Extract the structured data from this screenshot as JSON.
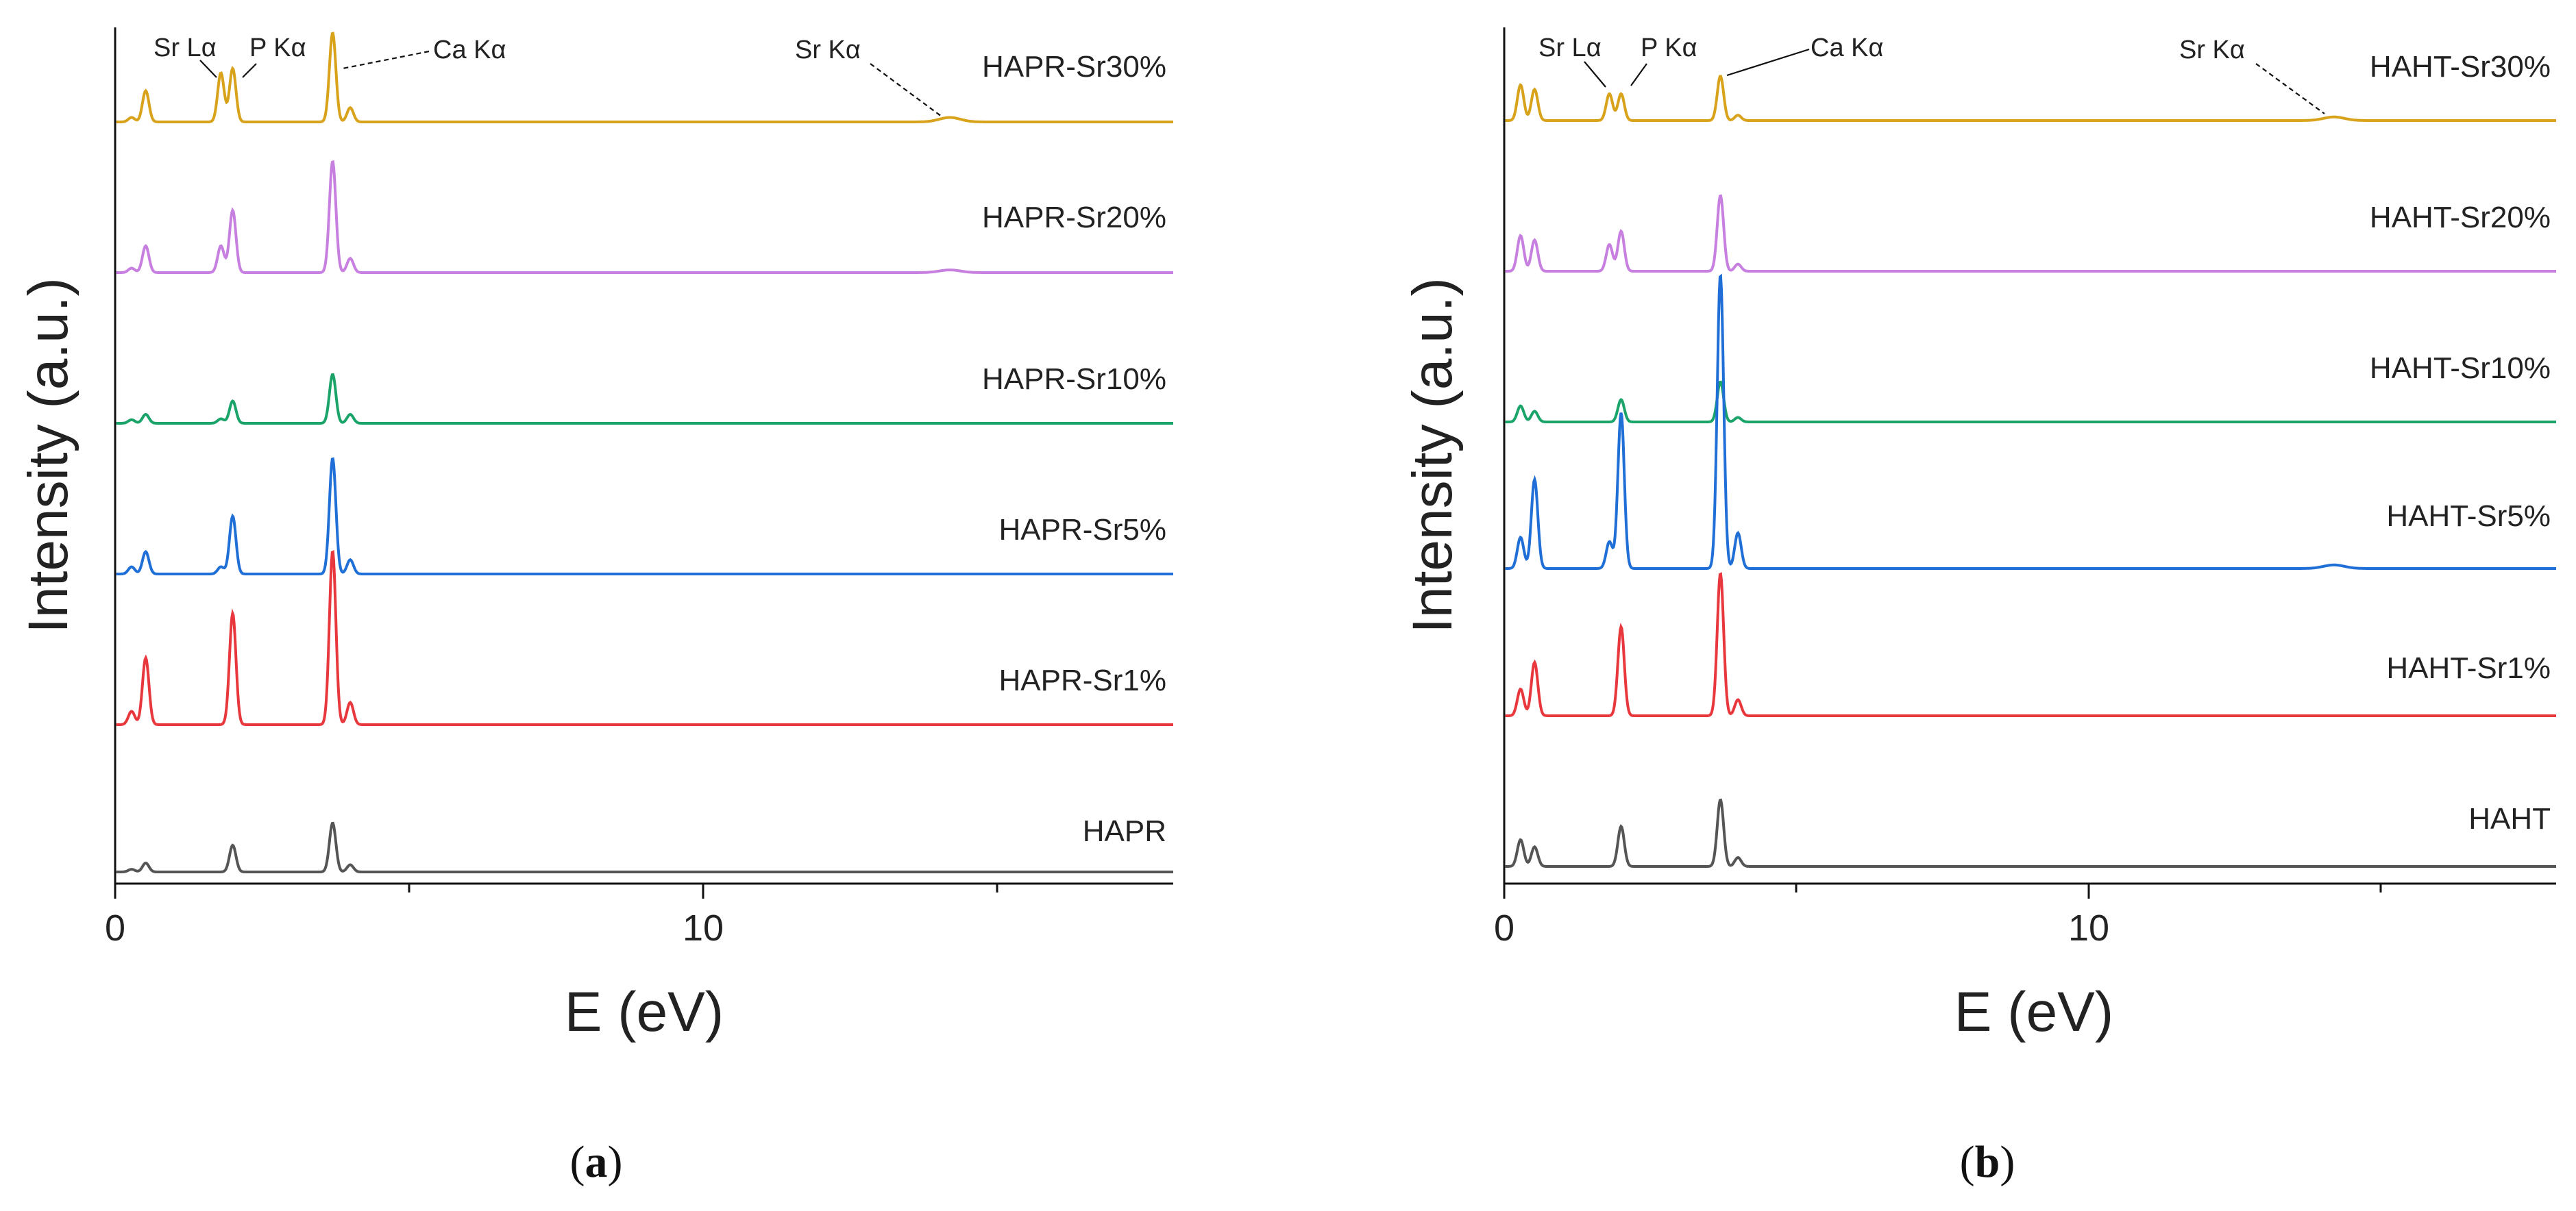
{
  "chart_data": [
    {
      "panel": "a",
      "panel_label": "(a)",
      "type": "line",
      "xlabel": "E (eV)",
      "ylabel": "Intensity (a.u.)",
      "xlim": [
        0,
        18
      ],
      "xticks": [
        0,
        10
      ],
      "peak_annotations": [
        {
          "label": "Sr Lα",
          "energy": 1.8
        },
        {
          "label": "P Kα",
          "energy": 2.0
        },
        {
          "label": "Ca Kα",
          "energy": 3.7
        },
        {
          "label": "Sr Kα",
          "energy": 14.2
        }
      ],
      "series": [
        {
          "name": "HAPR-Sr30%",
          "color": "#d9a21b",
          "peaks": [
            [
              0.28,
              0.05
            ],
            [
              0.52,
              0.35
            ],
            [
              1.8,
              0.55
            ],
            [
              2.0,
              0.6
            ],
            [
              3.7,
              1.0
            ],
            [
              4.0,
              0.16
            ],
            [
              14.2,
              0.05
            ]
          ]
        },
        {
          "name": "HAPR-Sr20%",
          "color": "#c77fe0",
          "peaks": [
            [
              0.28,
              0.05
            ],
            [
              0.52,
              0.3
            ],
            [
              1.8,
              0.3
            ],
            [
              2.0,
              0.7
            ],
            [
              3.7,
              1.25
            ],
            [
              4.0,
              0.16
            ],
            [
              14.2,
              0.03
            ]
          ]
        },
        {
          "name": "HAPR-Sr10%",
          "color": "#1aa46a",
          "peaks": [
            [
              0.28,
              0.04
            ],
            [
              0.52,
              0.1
            ],
            [
              1.8,
              0.05
            ],
            [
              2.0,
              0.25
            ],
            [
              3.7,
              0.55
            ],
            [
              4.0,
              0.1
            ]
          ]
        },
        {
          "name": "HAPR-Sr5%",
          "color": "#1f6fd6",
          "peaks": [
            [
              0.28,
              0.08
            ],
            [
              0.52,
              0.25
            ],
            [
              1.8,
              0.08
            ],
            [
              2.0,
              0.65
            ],
            [
              3.7,
              1.3
            ],
            [
              4.0,
              0.16
            ]
          ]
        },
        {
          "name": "HAPR-Sr1%",
          "color": "#e8383d",
          "peaks": [
            [
              0.28,
              0.15
            ],
            [
              0.52,
              0.75
            ],
            [
              2.0,
              1.25
            ],
            [
              3.7,
              1.95
            ],
            [
              4.0,
              0.25
            ]
          ]
        },
        {
          "name": "HAPR",
          "color": "#555555",
          "peaks": [
            [
              0.28,
              0.03
            ],
            [
              0.52,
              0.1
            ],
            [
              2.0,
              0.3
            ],
            [
              3.7,
              0.55
            ],
            [
              4.0,
              0.08
            ]
          ]
        }
      ]
    },
    {
      "panel": "b",
      "panel_label": "(b)",
      "type": "line",
      "xlabel": "E (eV)",
      "ylabel": "Intensity (a.u.)",
      "xlim": [
        0,
        18
      ],
      "xticks": [
        0,
        10
      ],
      "peak_annotations": [
        {
          "label": "Sr Lα",
          "energy": 1.8
        },
        {
          "label": "P Kα",
          "energy": 2.0
        },
        {
          "label": "Ca Kα",
          "energy": 3.7
        },
        {
          "label": "Sr Kα",
          "energy": 14.2
        }
      ],
      "series": [
        {
          "name": "HAHT-Sr30%",
          "color": "#d9a21b",
          "peaks": [
            [
              0.28,
              0.4
            ],
            [
              0.52,
              0.35
            ],
            [
              1.8,
              0.3
            ],
            [
              2.0,
              0.3
            ],
            [
              3.7,
              0.5
            ],
            [
              4.0,
              0.06
            ],
            [
              14.2,
              0.04
            ]
          ]
        },
        {
          "name": "HAHT-Sr20%",
          "color": "#c77fe0",
          "peaks": [
            [
              0.28,
              0.4
            ],
            [
              0.52,
              0.35
            ],
            [
              1.8,
              0.3
            ],
            [
              2.0,
              0.45
            ],
            [
              3.7,
              0.85
            ],
            [
              4.0,
              0.08
            ]
          ]
        },
        {
          "name": "HAHT-Sr10%",
          "color": "#1aa46a",
          "peaks": [
            [
              0.28,
              0.18
            ],
            [
              0.52,
              0.12
            ],
            [
              2.0,
              0.25
            ],
            [
              3.7,
              0.45
            ],
            [
              4.0,
              0.05
            ]
          ]
        },
        {
          "name": "HAHT-Sr5%",
          "color": "#1f6fd6",
          "peaks": [
            [
              0.28,
              0.35
            ],
            [
              0.52,
              1.0
            ],
            [
              1.8,
              0.3
            ],
            [
              2.0,
              1.75
            ],
            [
              3.7,
              3.3
            ],
            [
              4.0,
              0.4
            ],
            [
              14.2,
              0.04
            ]
          ]
        },
        {
          "name": "HAHT-Sr1%",
          "color": "#e8383d",
          "peaks": [
            [
              0.28,
              0.3
            ],
            [
              0.52,
              0.6
            ],
            [
              2.0,
              1.0
            ],
            [
              3.7,
              1.6
            ],
            [
              4.0,
              0.18
            ]
          ]
        },
        {
          "name": "HAHT",
          "color": "#555555",
          "peaks": [
            [
              0.28,
              0.3
            ],
            [
              0.52,
              0.22
            ],
            [
              2.0,
              0.45
            ],
            [
              3.7,
              0.75
            ],
            [
              4.0,
              0.1
            ]
          ]
        }
      ]
    }
  ]
}
